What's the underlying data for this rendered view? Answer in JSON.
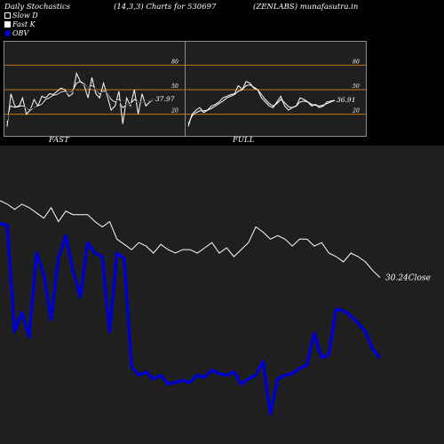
{
  "header": {
    "title_left": "Daily Stochastics",
    "title_mid": "(14,3,3) Charts for 530697",
    "title_right": "(ZENLABS) munafasutra.in"
  },
  "legend": [
    {
      "label": "Slow  D",
      "color": "#000000"
    },
    {
      "label": "Fast K",
      "color": "#ffffff"
    },
    {
      "label": "OBV",
      "color": "#0000cc"
    }
  ],
  "chart_data": [
    {
      "type": "line",
      "panel": "FAST",
      "title": "FAST",
      "y_ticks": [
        20,
        50,
        80
      ],
      "ylim": [
        0,
        100
      ],
      "levels": [
        20,
        50,
        80
      ],
      "last_value_label": "37.97",
      "series": [
        {
          "values": [
            5,
            45,
            30,
            28,
            40,
            20,
            25,
            38,
            30,
            42,
            40,
            45,
            44,
            48,
            52,
            50,
            42,
            45,
            70,
            60,
            55,
            40,
            65,
            45,
            40,
            58,
            42,
            25,
            30,
            48,
            8,
            40,
            30,
            50,
            20,
            45,
            30,
            35,
            38
          ]
        },
        {
          "values": [
            10,
            30,
            28,
            30,
            30,
            28,
            25,
            28,
            30,
            32,
            38,
            40,
            43,
            44,
            47,
            48,
            46,
            48,
            58,
            60,
            57,
            52,
            55,
            50,
            45,
            48,
            47,
            38,
            35,
            38,
            28,
            32,
            32,
            38,
            35,
            35,
            35,
            36,
            38
          ]
        },
        {
          "values": [
            12,
            28,
            27,
            28,
            29,
            28,
            26,
            28,
            29,
            31,
            36,
            39,
            42,
            43,
            46,
            47,
            46,
            47,
            55,
            58,
            56,
            52,
            54,
            50,
            46,
            47,
            47,
            40,
            36,
            37,
            30,
            32,
            32,
            36,
            35,
            35,
            35,
            36,
            37.97
          ]
        }
      ]
    },
    {
      "type": "line",
      "panel": "FULL",
      "title": "FULL",
      "y_ticks": [
        20,
        50,
        80
      ],
      "ylim": [
        0,
        100
      ],
      "levels": [
        20,
        50,
        80
      ],
      "last_value_label": "36.91",
      "series": [
        {
          "values": [
            5,
            20,
            25,
            28,
            22,
            25,
            30,
            32,
            35,
            40,
            42,
            44,
            45,
            55,
            50,
            60,
            58,
            52,
            50,
            40,
            35,
            30,
            28,
            35,
            42,
            30,
            25,
            28,
            30,
            40,
            38,
            35,
            30,
            32,
            28,
            30,
            35,
            36,
            37
          ]
        },
        {
          "values": [
            8,
            18,
            22,
            24,
            24,
            25,
            27,
            30,
            33,
            36,
            40,
            42,
            44,
            48,
            50,
            55,
            56,
            53,
            50,
            44,
            38,
            33,
            30,
            33,
            38,
            34,
            29,
            28,
            30,
            35,
            36,
            35,
            32,
            31,
            30,
            31,
            33,
            35,
            36.91
          ]
        }
      ]
    },
    {
      "type": "line",
      "panel": "main",
      "last_value_label": "30.24",
      "last_value_suffix": "Close",
      "series": [
        {
          "name": "Close",
          "values": [
            80,
            78,
            75,
            78,
            76,
            73,
            70,
            76,
            68,
            74,
            72,
            72,
            72,
            68,
            65,
            68,
            58,
            55,
            52,
            56,
            54,
            50,
            55,
            52,
            50,
            52,
            52,
            50,
            53,
            56,
            50,
            53,
            48,
            52,
            56,
            65,
            62,
            58,
            60,
            58,
            54,
            58,
            58,
            54,
            56,
            50,
            48,
            45,
            50,
            48,
            45,
            40,
            36
          ]
        },
        {
          "name": "OBV",
          "values": [
            67,
            66,
            5,
            16,
            2,
            50,
            38,
            12,
            47,
            60,
            40,
            25,
            56,
            50,
            48,
            5,
            50,
            47,
            -15,
            -20,
            -18,
            -22,
            -20,
            -25,
            -24,
            -23,
            -24,
            -20,
            -21,
            -17,
            -19,
            -20,
            -18,
            -25,
            -22,
            -20,
            -12,
            -42,
            -22,
            -20,
            -19,
            -16,
            -14,
            4,
            -10,
            -8,
            18,
            17,
            14,
            10,
            5,
            -5,
            -10
          ]
        }
      ]
    }
  ]
}
